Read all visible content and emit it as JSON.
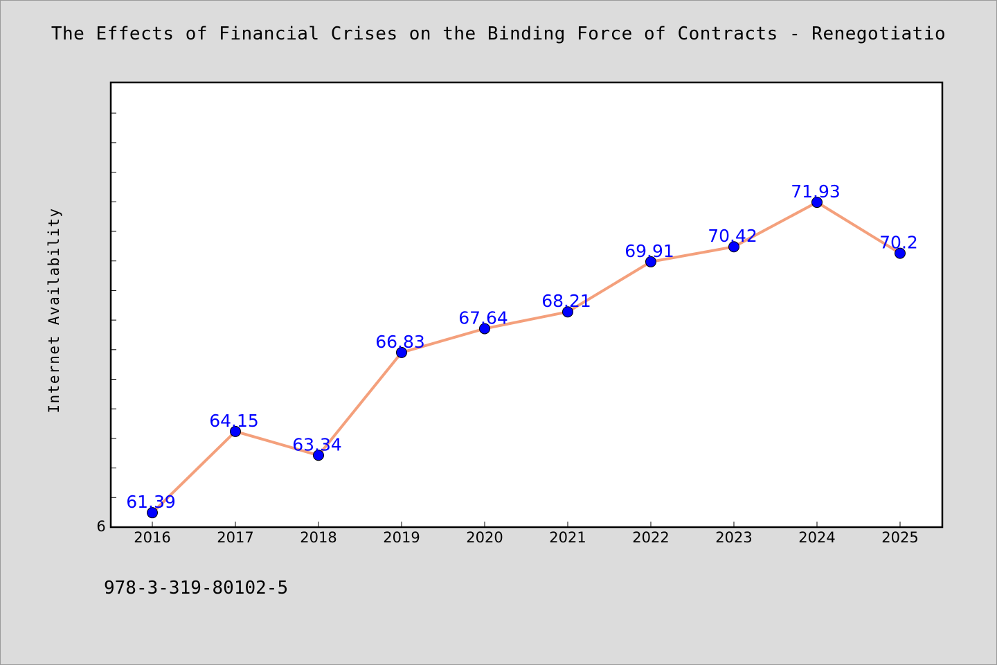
{
  "chart_data": {
    "type": "line",
    "title": "The Effects of Financial Crises on the Binding Force of Contracts - Renegotiatio",
    "xlabel": "",
    "ylabel": "Internet Availability",
    "x": [
      "2016",
      "2017",
      "2018",
      "2019",
      "2020",
      "2021",
      "2022",
      "2023",
      "2024",
      "2025"
    ],
    "series": [
      {
        "values": [
          61.39,
          64.15,
          63.34,
          66.83,
          67.64,
          68.21,
          69.91,
          70.42,
          71.93,
          70.2
        ],
        "data_labels": [
          "61.39",
          "64.15",
          "63.34",
          "66.83",
          "67.64",
          "68.21",
          "69.91",
          "70.42",
          "71.93",
          "70.2"
        ],
        "line_color": "#f4a07c",
        "marker_color": "#0000ff"
      }
    ],
    "ylim": [
      60.9,
      76.0
    ],
    "y_tick_labels": [
      "6"
    ],
    "grid": false,
    "legend": "none"
  },
  "footer": {
    "code": "978-3-319-80102-5"
  }
}
